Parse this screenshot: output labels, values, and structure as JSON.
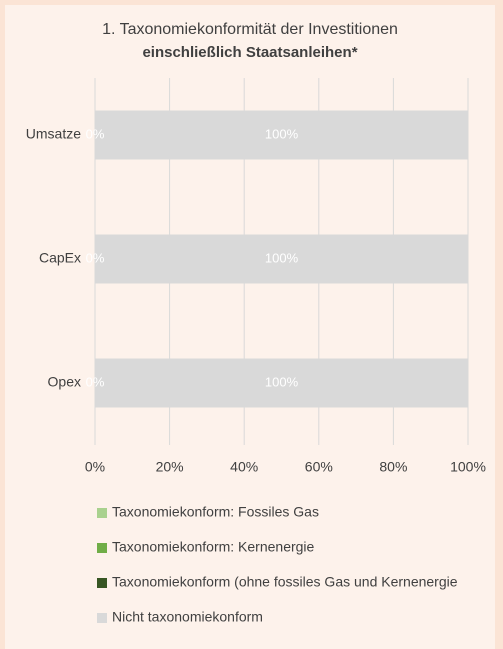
{
  "chart_data": {
    "type": "stacked_barh",
    "title": "1. Taxonomiekonformität der Investitionen",
    "subtitle": "einschließlich Staatsanleihen*",
    "categories": [
      "Umsatze",
      "CapEx",
      "Opex"
    ],
    "series": [
      {
        "name": "Taxonomiekonform: Fossiles Gas",
        "color": "#a9d18e",
        "values": [
          0,
          0,
          0
        ]
      },
      {
        "name": "Taxonomiekonform: Kernenergie",
        "color": "#70ad47",
        "values": [
          0,
          0,
          0
        ]
      },
      {
        "name": "Taxonomiekonform (ohne fossiles Gas und Kernenergie",
        "color": "#375623",
        "values": [
          0,
          0,
          0
        ],
        "value_labels": [
          "0%",
          "0%",
          "0%"
        ]
      },
      {
        "name": "Nicht taxonomiekonform",
        "color": "#d9d9d9",
        "values": [
          100,
          100,
          100
        ],
        "value_labels": [
          "100%",
          "100%",
          "100%"
        ]
      }
    ],
    "xlim": [
      0,
      100
    ],
    "xticks": [
      {
        "value": 0,
        "label": "0%"
      },
      {
        "value": 20,
        "label": "20%"
      },
      {
        "value": 40,
        "label": "40%"
      },
      {
        "value": 60,
        "label": "60%"
      },
      {
        "value": 80,
        "label": "80%"
      },
      {
        "value": 100,
        "label": "100%"
      }
    ],
    "grid": true,
    "legend": "bottom"
  }
}
